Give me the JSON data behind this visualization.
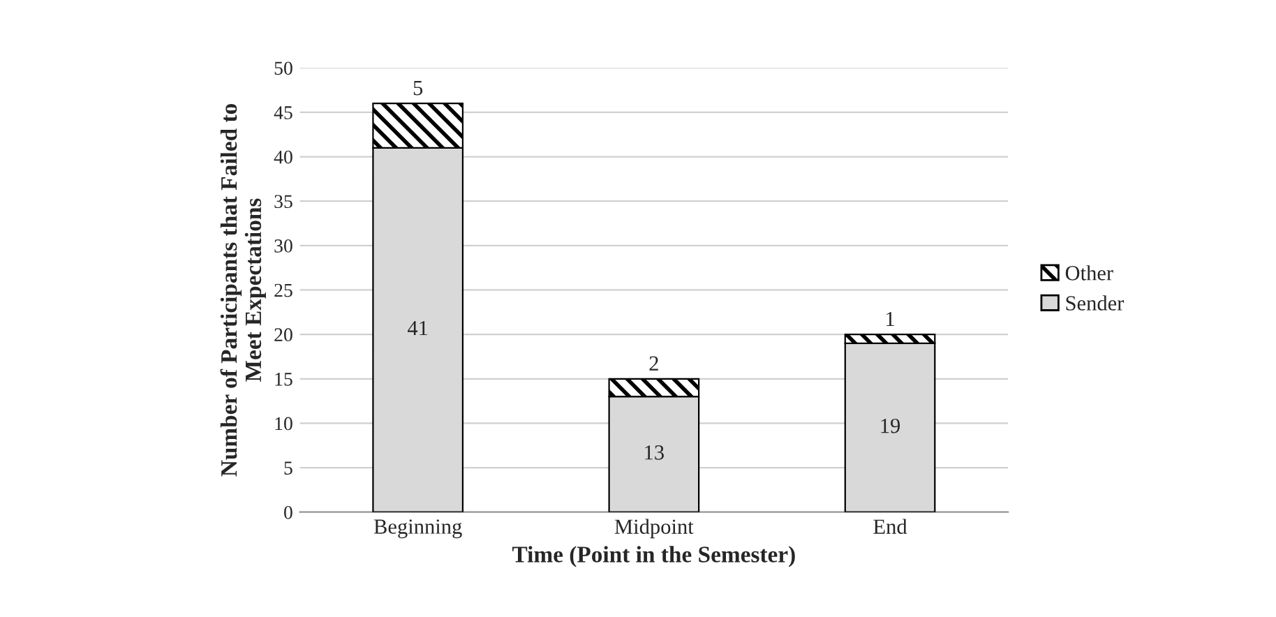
{
  "chart_data": {
    "type": "bar",
    "stacked": true,
    "xlabel": "Time (Point in the Semester)",
    "ylabel": "Number of Participants that Failed to\nMeet Expectations",
    "categories": [
      "Beginning",
      "Midpoint",
      "End"
    ],
    "series": [
      {
        "name": "Sender",
        "color": "#d9d9d9",
        "values": [
          41,
          13,
          19
        ]
      },
      {
        "name": "Other",
        "color": "#000000",
        "values": [
          5,
          2,
          1
        ]
      }
    ],
    "ylim": [
      0,
      50
    ],
    "yticks": [
      0,
      5,
      10,
      15,
      20,
      25,
      30,
      35,
      40,
      45,
      50
    ],
    "grid": "y",
    "legend": "right",
    "data_labels": true
  }
}
